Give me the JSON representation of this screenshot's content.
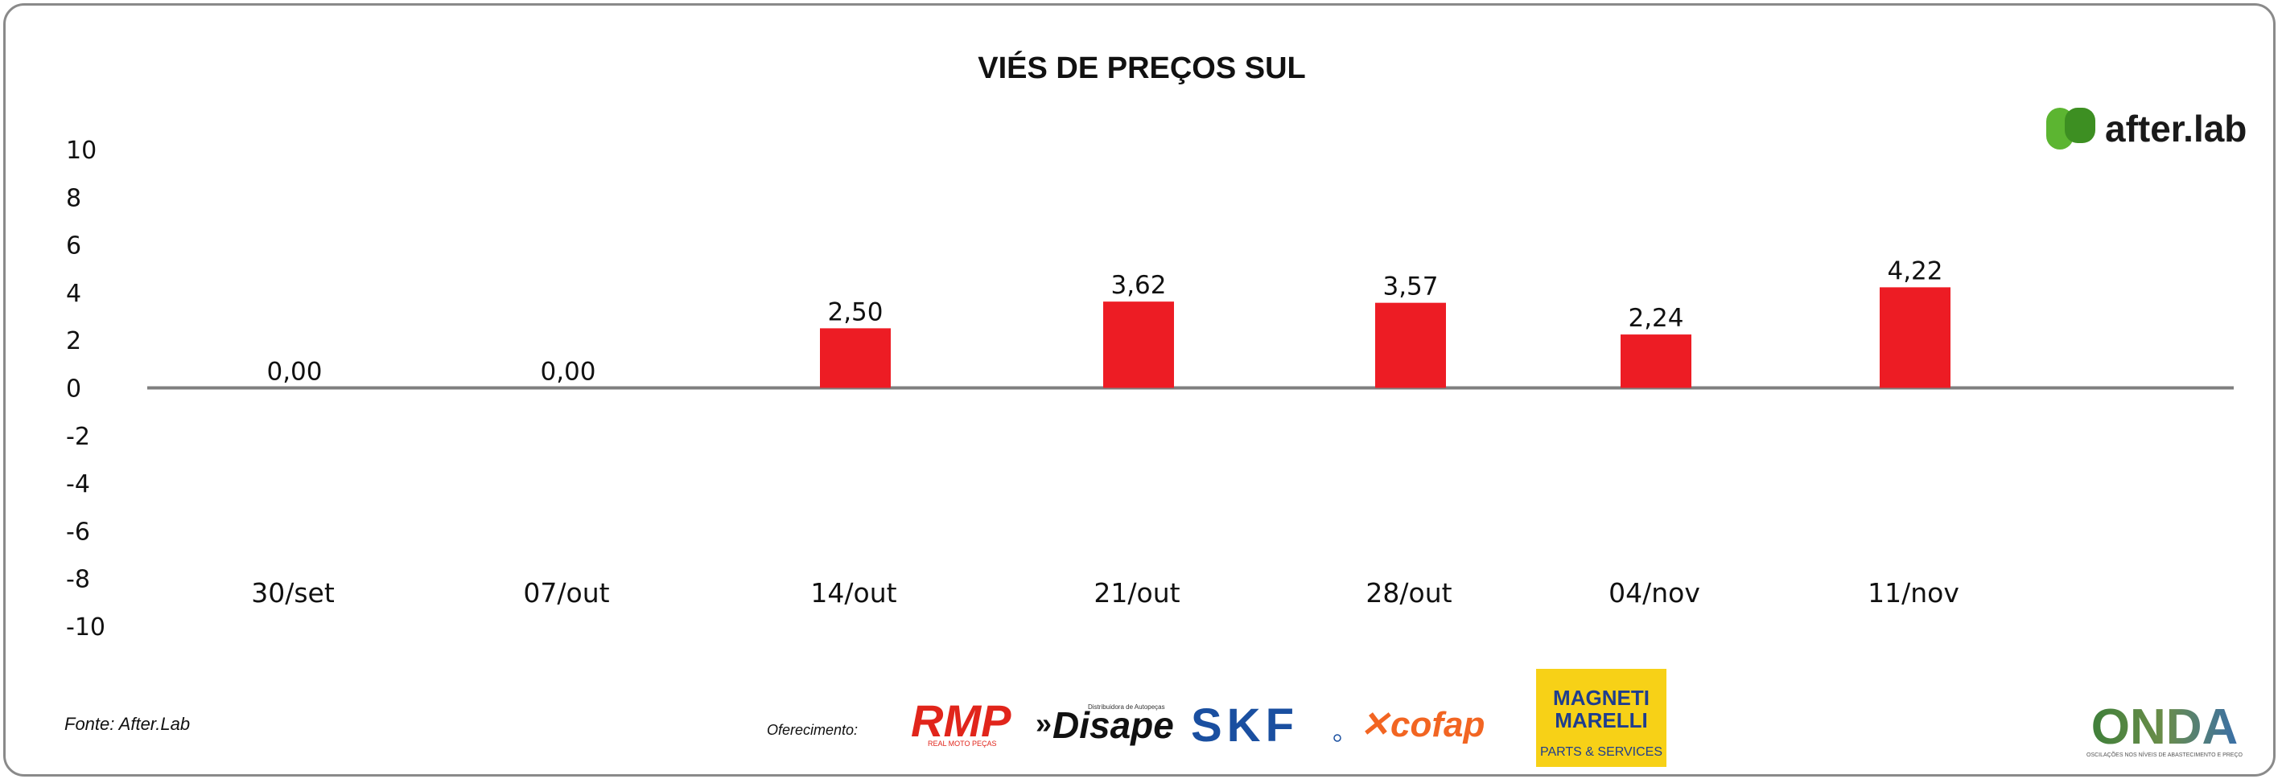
{
  "chart_data": {
    "type": "bar",
    "title": "VIÉS DE PREÇOS SUL",
    "categories": [
      "30/set",
      "07/out",
      "14/out",
      "21/out",
      "28/out",
      "04/nov",
      "11/nov"
    ],
    "values": [
      0.0,
      0.0,
      2.5,
      3.62,
      3.57,
      2.24,
      4.22
    ],
    "value_labels": [
      "0,00",
      "0,00",
      "2,50",
      "3,62",
      "3,57",
      "2,24",
      "4,22"
    ],
    "y_ticks": [
      "10",
      "8",
      "6",
      "4",
      "2",
      "0",
      "-2",
      "-4",
      "-6",
      "-8",
      "-10"
    ],
    "ylim": [
      -10,
      10
    ],
    "bar_color": "#ed1c24",
    "grid": false
  },
  "source": "Fonte: After.Lab",
  "sponsor_label": "Oferecimento:",
  "logos": {
    "brand": "after.lab",
    "rmp": "RMP",
    "rmp_sub": "REAL MOTO PEÇAS",
    "disape": "Disape",
    "disape_sub": "Distribuidora de Autopeças",
    "skf": "SKF",
    "cofap": "cofap",
    "magneti_line1": "MAGNETI",
    "magneti_line2": "MARELLI",
    "magneti_sub": "PARTS & SERVICES",
    "onda": "ONDA",
    "onda_sub": "OSCILAÇÕES NOS NÍVEIS DE ABASTECIMENTO E PREÇO"
  },
  "colors": {
    "brand_green": "#5cb531",
    "skf_blue": "#1a4fa0",
    "cofap_orange": "#f26522",
    "magneti_yellow": "#f7d117",
    "rmp_red": "#e1251b"
  }
}
